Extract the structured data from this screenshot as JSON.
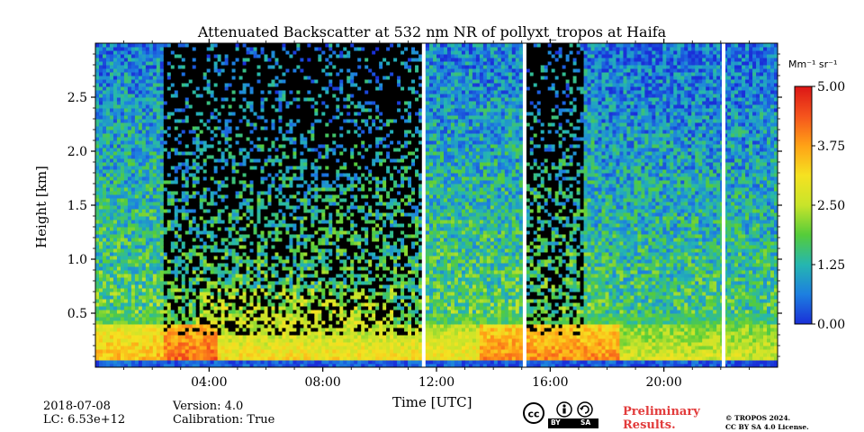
{
  "chart_data": {
    "type": "heatmap",
    "title": "Attenuated Backscatter at 532 nm NR of pollyxt_tropos at Haifa",
    "xlabel": "Time [UTC]",
    "ylabel": "Height [km]",
    "x_unit": "hours UTC",
    "xlim": [
      0,
      24
    ],
    "ylim": [
      0,
      3.0
    ],
    "x_ticks": [
      {
        "value": 4,
        "label": "04:00"
      },
      {
        "value": 8,
        "label": "08:00"
      },
      {
        "value": 12,
        "label": "12:00"
      },
      {
        "value": 16,
        "label": "16:00"
      },
      {
        "value": 20,
        "label": "20:00"
      }
    ],
    "y_ticks": [
      {
        "value": 0.5,
        "label": "0.5"
      },
      {
        "value": 1.0,
        "label": "1.0"
      },
      {
        "value": 1.5,
        "label": "1.5"
      },
      {
        "value": 2.0,
        "label": "2.0"
      },
      {
        "value": 2.5,
        "label": "2.5"
      }
    ],
    "colorbar": {
      "unit_label": "Mm⁻¹ sr⁻¹",
      "range": [
        0.0,
        5.0
      ],
      "ticks": [
        {
          "value": 0.0,
          "label": "0.00"
        },
        {
          "value": 1.25,
          "label": "1.25"
        },
        {
          "value": 2.5,
          "label": "2.50"
        },
        {
          "value": 3.75,
          "label": "3.75"
        },
        {
          "value": 5.0,
          "label": "5.00"
        }
      ],
      "colors": [
        "#1a2fd8",
        "#1d7fe0",
        "#25b6b0",
        "#55cc3a",
        "#c8e42a",
        "#f5e221",
        "#ffa216",
        "#f5541d",
        "#dc1616"
      ]
    },
    "data_gaps_hours": [
      11.55,
      15.1,
      22.1
    ],
    "features": {
      "noisy_night_periods": [
        [
          2.4,
          11.5
        ],
        [
          15.2,
          17.2
        ]
      ],
      "aerosol_layer_top_km": 0.4,
      "noise_color": "#000000"
    }
  },
  "footer": {
    "date": "2018-07-08",
    "lc": "LC: 6.53e+12",
    "version": "Version: 4.0",
    "calibration": "Calibration: True",
    "preliminary_line1": "Preliminary",
    "preliminary_line2": "Results.",
    "copyright_line1": "© TROPOS 2024.",
    "copyright_line2": "CC BY SA 4.0 License.",
    "license_by": "BY",
    "license_sa": "SA"
  }
}
